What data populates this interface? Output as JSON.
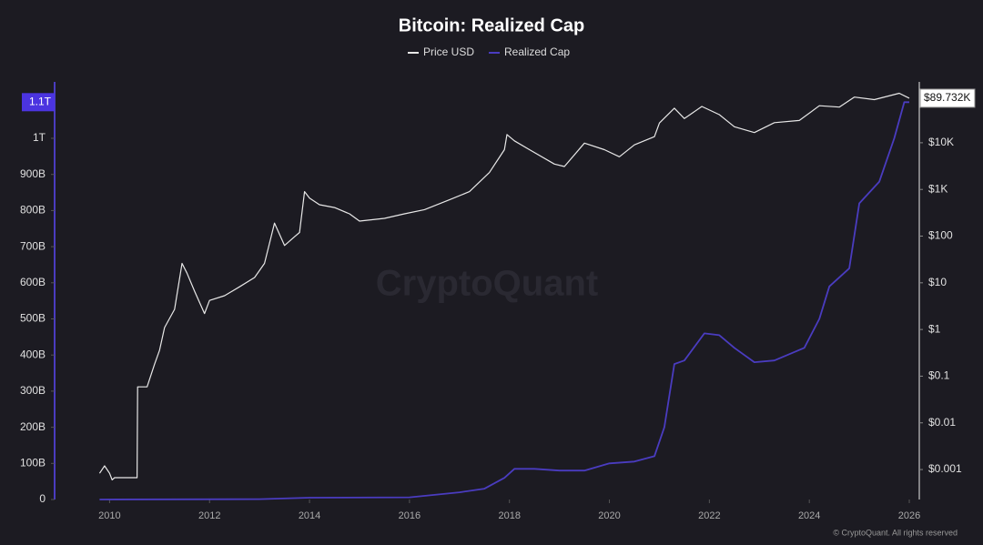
{
  "chart_data": {
    "type": "line",
    "title": "Bitcoin: Realized Cap",
    "watermark": "CryptoQuant",
    "footer": "© CryptoQuant. All rights reserved",
    "xlim": [
      2008.9,
      2026.2
    ],
    "xticks": [
      2010,
      2012,
      2014,
      2016,
      2018,
      2020,
      2022,
      2024,
      2026
    ],
    "ylim": [
      0,
      1131
    ],
    "yticks": [
      0,
      {
        "value": 100,
        "label": "100B"
      },
      {
        "value": 200,
        "label": "200B"
      },
      {
        "value": 300,
        "label": "300B"
      },
      {
        "value": 400,
        "label": "400B"
      },
      {
        "value": 500,
        "label": "500B"
      },
      {
        "value": 600,
        "label": "600B"
      },
      {
        "value": 700,
        "label": "700B"
      },
      {
        "value": 800,
        "label": "800B"
      },
      {
        "value": 900,
        "label": "900B"
      },
      {
        "value": 1000,
        "label": "1T"
      }
    ],
    "y2lim": [
      0.000228,
      128500
    ],
    "y2log": true,
    "y2ticks": [
      {
        "value": 0.001,
        "label": "$0.001"
      },
      {
        "value": 0.01,
        "label": "$0.01"
      },
      {
        "value": 0.1,
        "label": "$0.1"
      },
      {
        "value": 1,
        "label": "$1"
      },
      {
        "value": 10,
        "label": "$10"
      },
      {
        "value": 100,
        "label": "$100"
      },
      {
        "value": 1000,
        "label": "$1K"
      },
      {
        "value": 10000,
        "label": "$10K"
      }
    ],
    "grid": false,
    "legend": "top",
    "series": [
      {
        "name": "Price USD",
        "color": "#e8e8e8",
        "axis": "y2",
        "last_label": "$89.732K",
        "x": [
          2009.8,
          2009.9,
          2010.0,
          2010.05,
          2010.1,
          2010.55,
          2010.56,
          2010.75,
          2010.9,
          2011.0,
          2011.1,
          2011.3,
          2011.45,
          2011.55,
          2011.7,
          2011.9,
          2012.0,
          2012.3,
          2012.6,
          2012.9,
          2013.1,
          2013.3,
          2013.5,
          2013.7,
          2013.8,
          2013.9,
          2014.0,
          2014.2,
          2014.5,
          2014.8,
          2015.0,
          2015.5,
          2015.9,
          2016.3,
          2016.8,
          2017.2,
          2017.6,
          2017.9,
          2017.95,
          2018.1,
          2018.4,
          2018.9,
          2019.1,
          2019.5,
          2019.9,
          2020.2,
          2020.5,
          2020.9,
          2021.0,
          2021.3,
          2021.5,
          2021.85,
          2022.2,
          2022.5,
          2022.9,
          2023.3,
          2023.8,
          2024.2,
          2024.6,
          2024.9,
          2025.3,
          2025.8,
          2026.0
        ],
        "values": [
          0.00083,
          0.0012,
          0.00083,
          0.0006,
          0.00067,
          0.00067,
          0.059,
          0.059,
          0.18,
          0.36,
          1.1,
          2.7,
          26,
          16,
          6.6,
          2.2,
          4.2,
          5.3,
          8.2,
          13,
          26,
          190,
          63,
          97,
          120,
          900,
          650,
          470,
          410,
          300,
          210,
          240,
          300,
          370,
          600,
          900,
          2300,
          7100,
          15000,
          11000,
          7100,
          3500,
          3100,
          9800,
          7100,
          5000,
          9000,
          13500,
          26500,
          55000,
          33000,
          60000,
          40000,
          22000,
          16500,
          27000,
          30000,
          62000,
          58000,
          95000,
          84000,
          115000,
          90000
        ]
      },
      {
        "name": "Realized Cap",
        "color": "#4a3cc0",
        "last_label": "1.1T",
        "x": [
          2009.8,
          2013.0,
          2014.0,
          2016.0,
          2017.0,
          2017.5,
          2017.9,
          2018.1,
          2018.5,
          2019.0,
          2019.5,
          2020.0,
          2020.5,
          2020.9,
          2021.1,
          2021.3,
          2021.5,
          2021.9,
          2022.2,
          2022.5,
          2022.9,
          2023.3,
          2023.9,
          2024.2,
          2024.4,
          2024.8,
          2025.0,
          2025.4,
          2025.7,
          2025.9,
          2026.0
        ],
        "values": [
          0,
          1,
          5,
          6,
          20,
          30,
          60,
          85,
          85,
          80,
          80,
          100,
          105,
          120,
          200,
          375,
          385,
          460,
          455,
          420,
          380,
          385,
          420,
          500,
          590,
          640,
          820,
          880,
          1000,
          1100,
          1100
        ]
      }
    ]
  }
}
